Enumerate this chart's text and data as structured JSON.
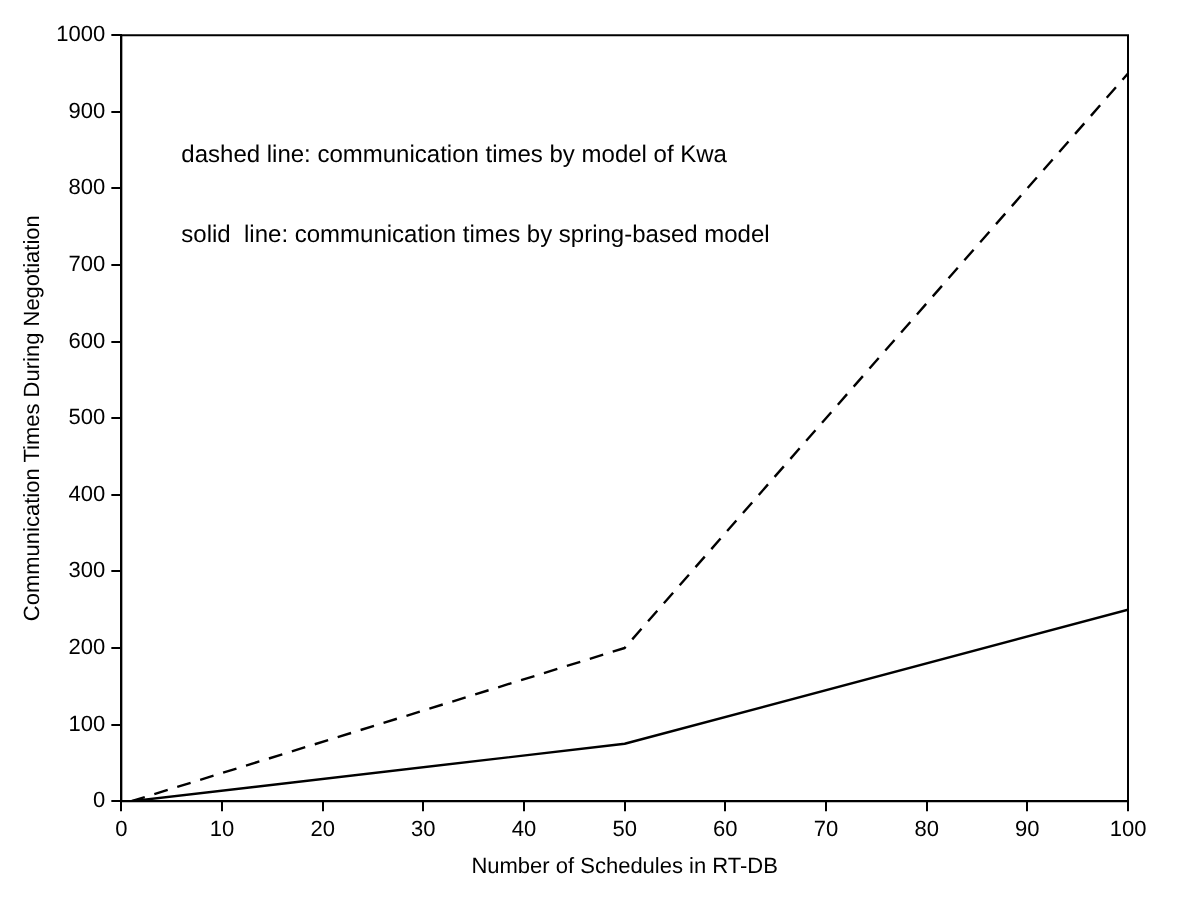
{
  "chart_data": {
    "type": "line",
    "xlabel": "Number of Schedules in RT-DB",
    "ylabel": "Communication Times During Negotiation",
    "annotations": [
      "dashed line: communication times by model of Kwa",
      "solid  line: communication times by spring-based model"
    ],
    "xlim": [
      0,
      100
    ],
    "xticks": [
      0,
      10,
      20,
      30,
      40,
      50,
      60,
      70,
      80,
      90,
      100
    ],
    "ylim": [
      0,
      1000
    ],
    "yticks": [
      0,
      100,
      200,
      300,
      400,
      500,
      600,
      700,
      800,
      900,
      1000
    ],
    "grid": false,
    "legend": false,
    "marker": "none",
    "series": [
      {
        "x": [
          1,
          50,
          100
        ],
        "values": [
          0,
          200,
          950
        ],
        "color": "#000000",
        "line_style": "dashed"
      },
      {
        "x": [
          1,
          50,
          100
        ],
        "values": [
          0,
          75,
          250
        ],
        "color": "#000000",
        "line_style": "solid"
      }
    ]
  }
}
